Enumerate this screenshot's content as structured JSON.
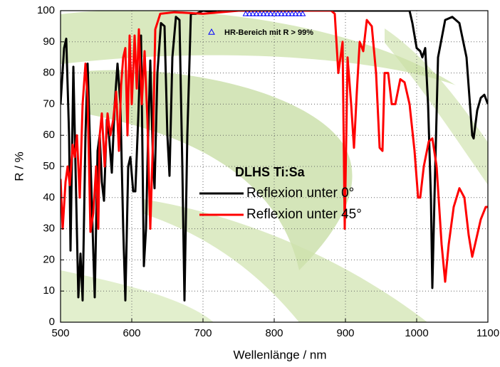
{
  "chart_data": {
    "type": "line",
    "x_label": "Wellenlänge / nm",
    "y_label": "R / %",
    "xlim": [
      500,
      1100
    ],
    "ylim": [
      0,
      100
    ],
    "xticks": [
      500,
      600,
      700,
      800,
      900,
      1000,
      1100
    ],
    "yticks": [
      0,
      10,
      20,
      30,
      40,
      50,
      60,
      70,
      80,
      90,
      100
    ],
    "grid": true,
    "legend_title": "DLHS Ti:Sa",
    "series": [
      {
        "name": "Reflexion unter 0°",
        "color": "#000000",
        "x": [
          500,
          505,
          508,
          512,
          514,
          518,
          521,
          525,
          528,
          531,
          535,
          538,
          541,
          545,
          548,
          552,
          555,
          558,
          561,
          565,
          568,
          572,
          576,
          580,
          584,
          588,
          591,
          595,
          598,
          602,
          605,
          609,
          613,
          617,
          620,
          623,
          626,
          630,
          632,
          636,
          641,
          646,
          650,
          653,
          657,
          662,
          667,
          671,
          674,
          678,
          683,
          690,
          700,
          720,
          740,
          800,
          900,
          990,
          994,
          1000,
          1005,
          1008,
          1012,
          1016,
          1020,
          1022,
          1025,
          1030,
          1040,
          1050,
          1060,
          1070,
          1078,
          1080,
          1085,
          1090,
          1095,
          1100
        ],
        "values": [
          70,
          88,
          91,
          60,
          23,
          82,
          50,
          8,
          22,
          7,
          60,
          83,
          60,
          30,
          8,
          55,
          60,
          45,
          39,
          65,
          60,
          48,
          70,
          83,
          70,
          30,
          7,
          50,
          53,
          42,
          42,
          65,
          92,
          18,
          30,
          60,
          84,
          50,
          43,
          80,
          96,
          95,
          60,
          47,
          85,
          98,
          97,
          50,
          7,
          60,
          99,
          99,
          100,
          99.5,
          100,
          100,
          100,
          100,
          96,
          88,
          87,
          85,
          88,
          70,
          40,
          11,
          40,
          85,
          97,
          98,
          96,
          85,
          60,
          59,
          68,
          72,
          73,
          70
        ]
      },
      {
        "name": "Reflexion unter 45°",
        "color": "#ff0000",
        "x": [
          500,
          503,
          507,
          510,
          513,
          517,
          520,
          523,
          527,
          531,
          535,
          538,
          542,
          546,
          550,
          553,
          555,
          558,
          562,
          566,
          570,
          574,
          578,
          582,
          585,
          588,
          591,
          594,
          597,
          600,
          604,
          607,
          610,
          614,
          618,
          622,
          626,
          630,
          633,
          640,
          660,
          700,
          750,
          880,
          885,
          890,
          896,
          899,
          903,
          908,
          912,
          916,
          920,
          925,
          930,
          937,
          943,
          948,
          952,
          955,
          960,
          965,
          970,
          977,
          983,
          990,
          997,
          1002,
          1005,
          1010,
          1017,
          1022,
          1028,
          1035,
          1040,
          1045,
          1052,
          1060,
          1067,
          1073,
          1078,
          1083,
          1090,
          1097,
          1100
        ],
        "values": [
          46,
          30,
          45,
          50,
          44,
          57,
          53,
          60,
          40,
          70,
          83,
          72,
          29,
          35,
          50,
          30,
          60,
          67,
          50,
          67,
          60,
          65,
          74,
          55,
          76,
          85,
          88,
          60,
          92,
          70,
          92,
          75,
          94,
          70,
          87,
          65,
          30,
          60,
          94,
          99,
          99.5,
          99,
          100,
          100,
          99,
          80,
          90,
          30,
          85,
          70,
          56,
          74,
          90,
          87,
          97,
          95,
          80,
          56,
          55,
          80,
          80,
          70,
          70,
          78,
          77,
          70,
          55,
          40,
          40,
          50,
          58,
          59,
          50,
          25,
          13,
          25,
          37,
          43,
          40,
          28,
          21,
          26,
          33,
          37,
          37
        ]
      },
      {
        "name": "HR-Bereich mit R > 99%",
        "color": "#0000ff",
        "marker": "triangle",
        "x": [
          760,
          765,
          770,
          775,
          780,
          785,
          790,
          795,
          800,
          805,
          810,
          815,
          820,
          825,
          830,
          835,
          840
        ],
        "values": [
          99,
          99,
          99,
          99,
          99,
          99,
          99,
          99,
          99,
          99,
          99,
          99,
          99,
          99,
          99,
          99,
          99
        ]
      }
    ]
  }
}
